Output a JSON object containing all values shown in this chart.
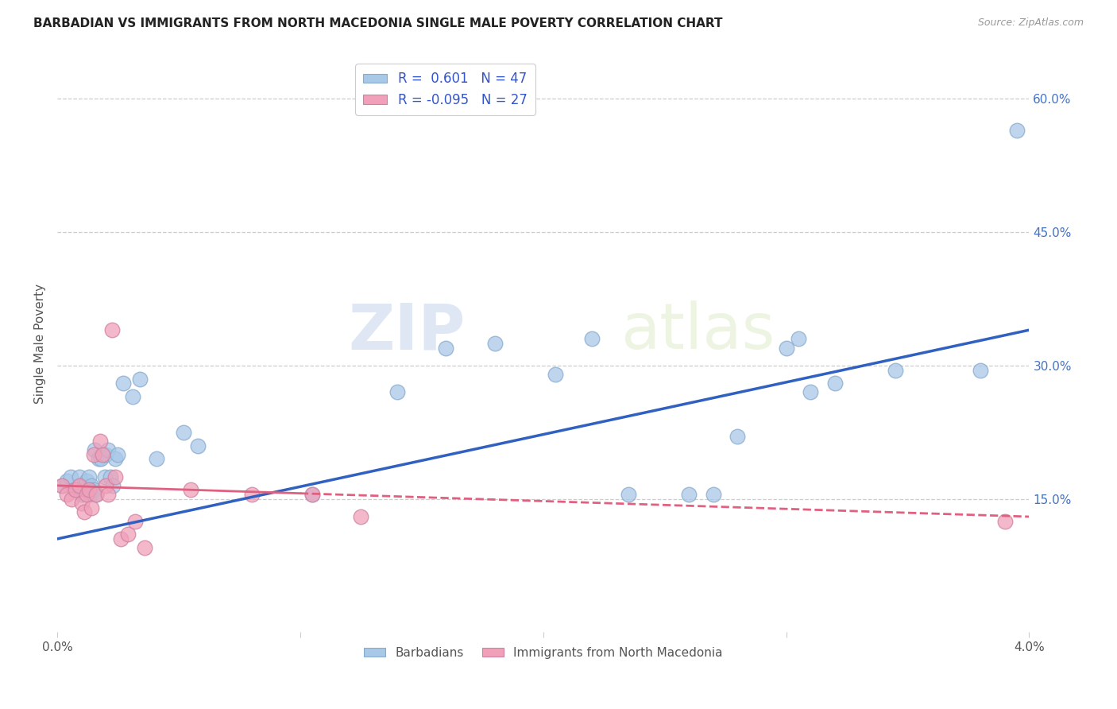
{
  "title": "BARBADIAN VS IMMIGRANTS FROM NORTH MACEDONIA SINGLE MALE POVERTY CORRELATION CHART",
  "source": "Source: ZipAtlas.com",
  "ylabel": "Single Male Poverty",
  "xlim": [
    0.0,
    0.04
  ],
  "ylim": [
    0.0,
    0.65
  ],
  "xticks": [
    0.0,
    0.01,
    0.02,
    0.03,
    0.04
  ],
  "xtick_labels": [
    "0.0%",
    "",
    "",
    "",
    "4.0%"
  ],
  "ytick_labels_right": [
    "15.0%",
    "30.0%",
    "45.0%",
    "60.0%"
  ],
  "ytick_positions_right": [
    0.15,
    0.3,
    0.45,
    0.6
  ],
  "barbadian_color": "#a8c8e8",
  "macedonia_color": "#f0a0b8",
  "line_blue": "#3060c0",
  "line_pink": "#e06080",
  "background_color": "#ffffff",
  "barbadians_scatter_x": [
    0.0002,
    0.0004,
    0.00055,
    0.0007,
    0.0008,
    0.0009,
    0.001,
    0.0011,
    0.0012,
    0.0013,
    0.00135,
    0.0014,
    0.0015,
    0.00155,
    0.0016,
    0.0017,
    0.0018,
    0.00195,
    0.002,
    0.0021,
    0.0022,
    0.0023,
    0.0024,
    0.0025,
    0.0027,
    0.0031,
    0.0034,
    0.0041,
    0.0052,
    0.0058,
    0.0105,
    0.014,
    0.016,
    0.018,
    0.0205,
    0.022,
    0.0235,
    0.026,
    0.027,
    0.028,
    0.03,
    0.0305,
    0.031,
    0.032,
    0.0345,
    0.038,
    0.0395
  ],
  "barbadians_scatter_y": [
    0.165,
    0.17,
    0.175,
    0.16,
    0.16,
    0.175,
    0.155,
    0.165,
    0.17,
    0.175,
    0.155,
    0.165,
    0.16,
    0.205,
    0.155,
    0.195,
    0.195,
    0.175,
    0.2,
    0.205,
    0.175,
    0.165,
    0.195,
    0.2,
    0.28,
    0.265,
    0.285,
    0.195,
    0.225,
    0.21,
    0.155,
    0.27,
    0.32,
    0.325,
    0.29,
    0.33,
    0.155,
    0.155,
    0.155,
    0.22,
    0.32,
    0.33,
    0.27,
    0.28,
    0.295,
    0.295,
    0.565
  ],
  "macedonia_scatter_x": [
    0.0002,
    0.0004,
    0.0006,
    0.00075,
    0.0009,
    0.001,
    0.0011,
    0.0012,
    0.0013,
    0.0014,
    0.0015,
    0.0016,
    0.00175,
    0.00185,
    0.002,
    0.0021,
    0.00225,
    0.0024,
    0.0026,
    0.0029,
    0.0032,
    0.0036,
    0.0055,
    0.008,
    0.0105,
    0.0125,
    0.039
  ],
  "macedonia_scatter_y": [
    0.165,
    0.155,
    0.15,
    0.16,
    0.165,
    0.145,
    0.135,
    0.155,
    0.16,
    0.14,
    0.2,
    0.155,
    0.215,
    0.2,
    0.165,
    0.155,
    0.34,
    0.175,
    0.105,
    0.11,
    0.125,
    0.095,
    0.16,
    0.155,
    0.155,
    0.13,
    0.125
  ],
  "blue_line_x": [
    0.0,
    0.04
  ],
  "blue_line_y": [
    0.105,
    0.34
  ],
  "pink_line_x": [
    0.0,
    0.04
  ],
  "pink_line_y": [
    0.165,
    0.13
  ]
}
